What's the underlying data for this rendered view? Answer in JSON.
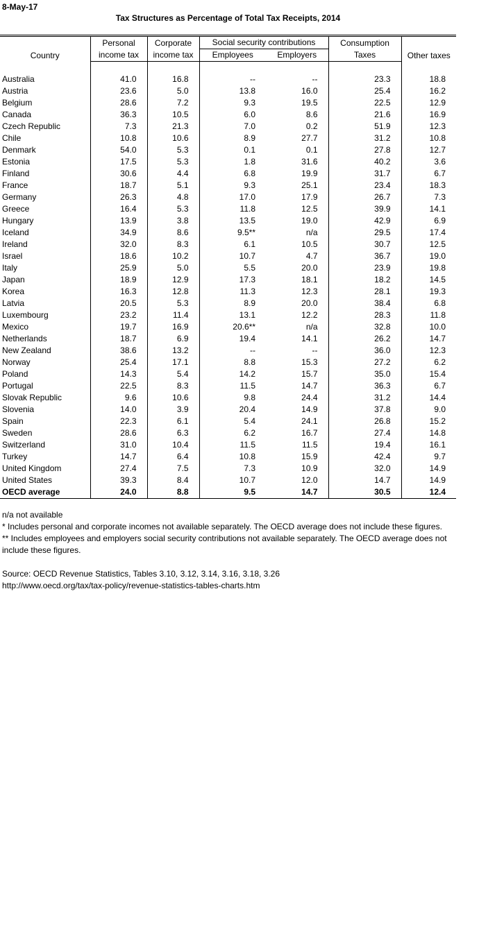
{
  "date": "8-May-17",
  "title": "Tax Structures as Percentage of Total Tax Receipts, 2014",
  "table": {
    "header": {
      "country": "Country",
      "personal": [
        "Personal",
        "income tax"
      ],
      "corporate": [
        "Corporate",
        "income tax"
      ],
      "social": "Social security contributions",
      "employees": "Employees",
      "employers": "Employers",
      "consumption": [
        "Consumption",
        "Taxes"
      ],
      "other": "Other taxes"
    },
    "rows": [
      [
        "Australia",
        "41.0",
        "16.8",
        "--",
        "--",
        "23.3",
        "18.8"
      ],
      [
        "Austria",
        "23.6",
        "5.0",
        "13.8",
        "16.0",
        "25.4",
        "16.2"
      ],
      [
        "Belgium",
        "28.6",
        "7.2",
        "9.3",
        "19.5",
        "22.5",
        "12.9"
      ],
      [
        "Canada",
        "36.3",
        "10.5",
        "6.0",
        "8.6",
        "21.6",
        "16.9"
      ],
      [
        "Czech Republic",
        "7.3",
        "21.3",
        "7.0",
        "0.2",
        "51.9",
        "12.3"
      ],
      [
        "Chile",
        "10.8",
        "10.6",
        "8.9",
        "27.7",
        "31.2",
        "10.8"
      ],
      [
        "Denmark",
        "54.0",
        "5.3",
        "0.1",
        "0.1",
        "27.8",
        "12.7"
      ],
      [
        "Estonia",
        "17.5",
        "5.3",
        "1.8",
        "31.6",
        "40.2",
        "3.6"
      ],
      [
        "Finland",
        "30.6",
        "4.4",
        "6.8",
        "19.9",
        "31.7",
        "6.7"
      ],
      [
        "France",
        "18.7",
        "5.1",
        "9.3",
        "25.1",
        "23.4",
        "18.3"
      ],
      [
        "Germany",
        "26.3",
        "4.8",
        "17.0",
        "17.9",
        "26.7",
        "7.3"
      ],
      [
        "Greece",
        "16.4",
        "5.3",
        "11.8",
        "12.5",
        "39.9",
        "14.1"
      ],
      [
        "Hungary",
        "13.9",
        "3.8",
        "13.5",
        "19.0",
        "42.9",
        "6.9"
      ],
      [
        "Iceland",
        "34.9",
        "8.6",
        "9.5**",
        "n/a",
        "29.5",
        "17.4"
      ],
      [
        "Ireland",
        "32.0",
        "8.3",
        "6.1",
        "10.5",
        "30.7",
        "12.5"
      ],
      [
        "Israel",
        "18.6",
        "10.2",
        "10.7",
        "4.7",
        "36.7",
        "19.0"
      ],
      [
        "Italy",
        "25.9",
        "5.0",
        "5.5",
        "20.0",
        "23.9",
        "19.8"
      ],
      [
        "Japan",
        "18.9",
        "12.9",
        "17.3",
        "18.1",
        "18.2",
        "14.5"
      ],
      [
        "Korea",
        "16.3",
        "12.8",
        "11.3",
        "12.3",
        "28.1",
        "19.3"
      ],
      [
        "Latvia",
        "20.5",
        "5.3",
        "8.9",
        "20.0",
        "38.4",
        "6.8"
      ],
      [
        "Luxembourg",
        "23.2",
        "11.4",
        "13.1",
        "12.2",
        "28.3",
        "11.8"
      ],
      [
        "Mexico",
        "19.7",
        "16.9",
        "20.6**",
        "n/a",
        "32.8",
        "10.0"
      ],
      [
        "Netherlands",
        "18.7",
        "6.9",
        "19.4",
        "14.1",
        "26.2",
        "14.7"
      ],
      [
        "New Zealand",
        "38.6",
        "13.2",
        "--",
        "--",
        "36.0",
        "12.3"
      ],
      [
        "Norway",
        "25.4",
        "17.1",
        "8.8",
        "15.3",
        "27.2",
        "6.2"
      ],
      [
        "Poland",
        "14.3",
        "5.4",
        "14.2",
        "15.7",
        "35.0",
        "15.4"
      ],
      [
        "Portugal",
        "22.5",
        "8.3",
        "11.5",
        "14.7",
        "36.3",
        "6.7"
      ],
      [
        "Slovak Republic",
        "9.6",
        "10.6",
        "9.8",
        "24.4",
        "31.2",
        "14.4"
      ],
      [
        "Slovenia",
        "14.0",
        "3.9",
        "20.4",
        "14.9",
        "37.8",
        "9.0"
      ],
      [
        "Spain",
        "22.3",
        "6.1",
        "5.4",
        "24.1",
        "26.8",
        "15.2"
      ],
      [
        "Sweden",
        "28.6",
        "6.3",
        "6.2",
        "16.7",
        "27.4",
        "14.8"
      ],
      [
        "Switzerland",
        "31.0",
        "10.4",
        "11.5",
        "11.5",
        "19.4",
        "16.1"
      ],
      [
        "Turkey",
        "14.7",
        "6.4",
        "10.8",
        "15.9",
        "42.4",
        "9.7"
      ],
      [
        "United Kingdom",
        "27.4",
        "7.5",
        "7.3",
        "10.9",
        "32.0",
        "14.9"
      ],
      [
        "United States",
        "39.3",
        "8.4",
        "10.7",
        "12.0",
        "14.7",
        "14.9"
      ]
    ],
    "average": [
      "OECD average",
      "24.0",
      "8.8",
      "9.5",
      "14.7",
      "30.5",
      "12.4"
    ]
  },
  "notes": [
    "n/a not available",
    "* Includes personal and corporate incomes not available separately. The OECD average does not include these figures.",
    "** Includes employees and employers social security contributions not available separately. The OECD average does not include these figures."
  ],
  "source": [
    "Source: OECD Revenue Statistics, Tables 3.10, 3.12, 3.14, 3.16, 3.18, 3.26",
    "http://www.oecd.org/tax/tax-policy/revenue-statistics-tables-charts.htm"
  ]
}
